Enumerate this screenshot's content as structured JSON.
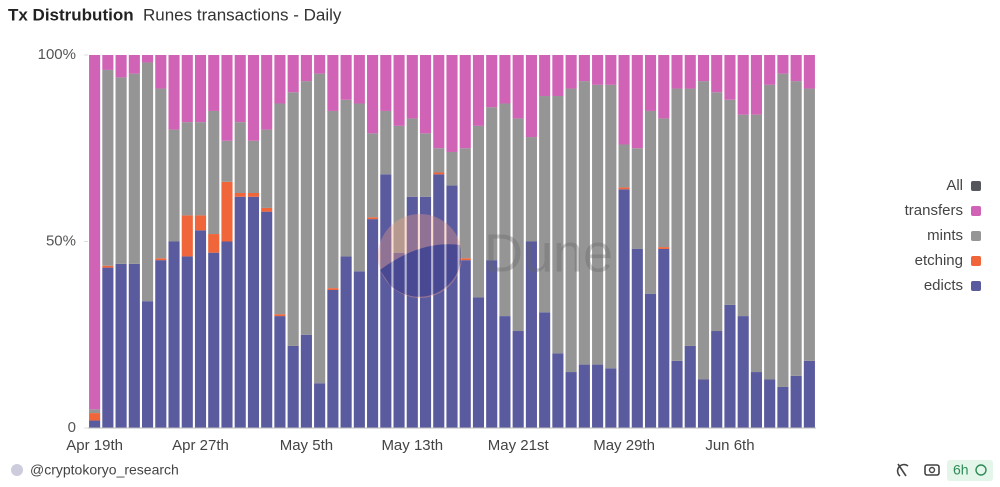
{
  "chart_data": {
    "type": "stacked_bar_percent",
    "title": "Tx Distrubution",
    "subtitle": "Runes transactions - Daily",
    "watermark": "Dune",
    "footer": {
      "author": "@cryptokoryo_research",
      "refresh": "6h"
    },
    "legend": {
      "position": "right",
      "all_label": "All",
      "all_color": "#55575c"
    },
    "categories": [
      "Apr 19th",
      null,
      null,
      null,
      null,
      null,
      null,
      null,
      "Apr 27th",
      null,
      null,
      null,
      null,
      null,
      null,
      null,
      "May 5th",
      null,
      null,
      null,
      null,
      null,
      null,
      null,
      "May 13th",
      null,
      null,
      null,
      null,
      null,
      null,
      null,
      "May 21st",
      null,
      null,
      null,
      null,
      null,
      null,
      null,
      "May 29th",
      null,
      null,
      null,
      null,
      null,
      null,
      null,
      "Jun 6th",
      null,
      null,
      null,
      null,
      null,
      null
    ],
    "ylim": [
      0,
      100
    ],
    "yticks": [
      0,
      {
        "value": 50,
        "label": "50%"
      },
      {
        "value": 100,
        "label": "100%"
      }
    ],
    "series": [
      {
        "name": "edicts",
        "color": "#5a5a9e",
        "values": [
          2,
          43,
          44,
          44,
          34,
          45,
          50,
          46,
          53,
          47,
          50,
          62,
          62,
          58,
          30,
          22,
          25,
          12,
          37,
          46,
          42,
          56,
          68,
          47,
          62,
          62,
          68,
          65,
          45,
          35,
          45,
          30,
          26,
          50,
          31,
          20,
          15,
          17,
          17,
          16,
          64,
          48,
          36,
          48,
          18,
          22,
          13,
          26,
          33,
          30,
          15,
          13,
          11,
          14,
          18
        ]
      },
      {
        "name": "etching",
        "color": "#f0653a",
        "values": [
          2,
          0.5,
          0,
          0,
          0,
          0.5,
          0,
          11,
          4,
          5,
          16,
          1,
          1,
          1,
          0.5,
          0,
          0,
          0,
          0.5,
          0,
          0,
          0.5,
          0,
          0,
          0,
          0,
          0.5,
          0,
          0.5,
          0,
          0,
          0,
          0,
          0,
          0,
          0,
          0,
          0,
          0,
          0,
          0.5,
          0,
          0,
          0.5,
          0,
          0,
          0,
          0,
          0,
          0,
          0,
          0,
          0,
          0,
          0
        ]
      },
      {
        "name": "mints",
        "color": "#959595",
        "values": [
          1,
          52.5,
          50,
          51,
          64,
          45.5,
          30,
          25,
          25,
          33,
          11,
          19,
          14,
          21,
          56.5,
          68,
          68,
          83,
          47.5,
          42,
          45,
          22.5,
          17,
          34,
          21,
          17,
          6.5,
          9,
          29.5,
          46,
          41,
          57,
          57,
          28,
          58,
          69,
          76,
          76,
          75,
          76,
          11.5,
          27,
          49,
          34.5,
          73,
          69,
          80,
          64,
          55,
          54,
          69,
          79,
          84,
          79,
          73
        ]
      },
      {
        "name": "transfers",
        "color": "#d063b5",
        "values": [
          95,
          4,
          6,
          5,
          2,
          9,
          20,
          18,
          18,
          15,
          23,
          18,
          23,
          20,
          13,
          10,
          7,
          5,
          15,
          12,
          13,
          21,
          15,
          19,
          17,
          21,
          25,
          26,
          25,
          19,
          14,
          13,
          17,
          22,
          11,
          11,
          9,
          7,
          8,
          8,
          24,
          25,
          15,
          17,
          9,
          9,
          7,
          10,
          12,
          16,
          16,
          8,
          5,
          7,
          9
        ]
      }
    ]
  }
}
